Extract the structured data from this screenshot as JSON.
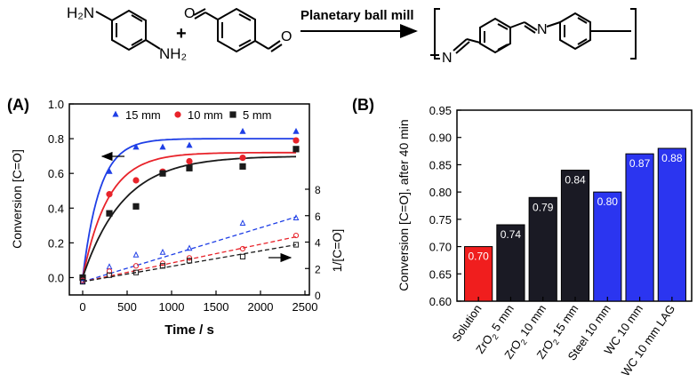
{
  "scheme": {
    "reagent_a": {
      "top_label": "H₂N",
      "bottom_label": "NH₂"
    },
    "plus": "+",
    "arrow_label": "Planetary ball mill"
  },
  "colors": {
    "blue": "#1f3fe6",
    "red": "#e8232a",
    "black": "#1a1a1a",
    "dark_bar": "#1a1a24",
    "blue_bar": "#2b35f0",
    "red_bar": "#f01e1e"
  },
  "chart_data": [
    {
      "id": "A",
      "panel_label": "(A)",
      "type": "scatter",
      "xlabel": "Time / s",
      "ylabel": "Conversion [C=O]",
      "y2label": "1/[C=O]",
      "xlim": [
        -150,
        2550
      ],
      "ylim": [
        -0.1,
        1.0
      ],
      "y2lim": [
        0,
        8
      ],
      "xticks": [
        "0",
        "500",
        "1000",
        "1500",
        "2000",
        "2500"
      ],
      "yticks": [
        "0.0",
        "0.2",
        "0.4",
        "0.6",
        "0.8",
        "1.0"
      ],
      "y2ticks": [
        "0",
        "2",
        "4",
        "6",
        "8"
      ],
      "series": [
        {
          "name": "15 mm",
          "color_key": "blue",
          "marker": "triangle",
          "x": [
            0,
            300,
            600,
            900,
            1200,
            1800,
            2400
          ],
          "y": [
            0.0,
            0.61,
            0.75,
            0.75,
            0.76,
            0.84,
            0.84
          ],
          "fit_plateau": 0.8,
          "fit_rate": 0.0052,
          "inv_x": [
            0,
            300,
            600,
            900,
            1200,
            1800,
            2400
          ],
          "inv_y": [
            1.0,
            2.1,
            3.0,
            3.2,
            3.5,
            5.4,
            5.8
          ],
          "inv_fit": [
            1.0,
            5.9
          ]
        },
        {
          "name": "10 mm",
          "color_key": "red",
          "marker": "circle",
          "x": [
            0,
            300,
            600,
            900,
            1200,
            1800,
            2400
          ],
          "y": [
            0.0,
            0.48,
            0.56,
            0.61,
            0.67,
            0.69,
            0.79
          ],
          "fit_plateau": 0.72,
          "fit_rate": 0.0035,
          "inv_x": [
            0,
            300,
            600,
            900,
            1200,
            1800,
            2400
          ],
          "inv_y": [
            1.1,
            1.8,
            2.2,
            2.4,
            2.8,
            3.5,
            4.5
          ],
          "inv_fit": [
            1.0,
            4.4
          ]
        },
        {
          "name": "5 mm",
          "color_key": "black",
          "marker": "square",
          "x": [
            0,
            300,
            600,
            900,
            1200,
            1800,
            2400
          ],
          "y": [
            0.0,
            0.37,
            0.41,
            0.6,
            0.63,
            0.64,
            0.74
          ],
          "fit_plateau": 0.7,
          "fit_rate": 0.0022,
          "inv_x": [
            0,
            300,
            600,
            900,
            1200,
            1800,
            2400
          ],
          "inv_y": [
            1.0,
            1.5,
            1.7,
            2.2,
            2.6,
            2.9,
            3.8
          ],
          "inv_fit": [
            1.0,
            3.8
          ]
        }
      ]
    },
    {
      "id": "B",
      "panel_label": "(B)",
      "type": "bar",
      "ylabel": "Conversion [C=O], after 40 min",
      "ylim": [
        0.6,
        0.95
      ],
      "yticks": [
        "0.60",
        "0.65",
        "0.70",
        "0.75",
        "0.80",
        "0.85",
        "0.90",
        "0.95"
      ],
      "categories": [
        {
          "base": "Solution",
          "sub": "",
          "rest": ""
        },
        {
          "base": "ZrO",
          "sub": "2",
          "rest": " 5 mm"
        },
        {
          "base": "ZrO",
          "sub": "2",
          "rest": " 10 mm"
        },
        {
          "base": "ZrO",
          "sub": "2",
          "rest": " 15 mm"
        },
        {
          "base": "Steel 10 mm",
          "sub": "",
          "rest": ""
        },
        {
          "base": "WC 10 mm",
          "sub": "",
          "rest": ""
        },
        {
          "base": "WC 10 mm LAG",
          "sub": "",
          "rest": ""
        }
      ],
      "values": [
        0.7,
        0.74,
        0.79,
        0.84,
        0.8,
        0.87,
        0.88
      ],
      "value_labels": [
        "0.70",
        "0.74",
        "0.79",
        "0.84",
        "0.80",
        "0.87",
        "0.88"
      ],
      "bar_color_keys": [
        "red_bar",
        "dark_bar",
        "dark_bar",
        "dark_bar",
        "blue_bar",
        "blue_bar",
        "blue_bar"
      ]
    }
  ]
}
